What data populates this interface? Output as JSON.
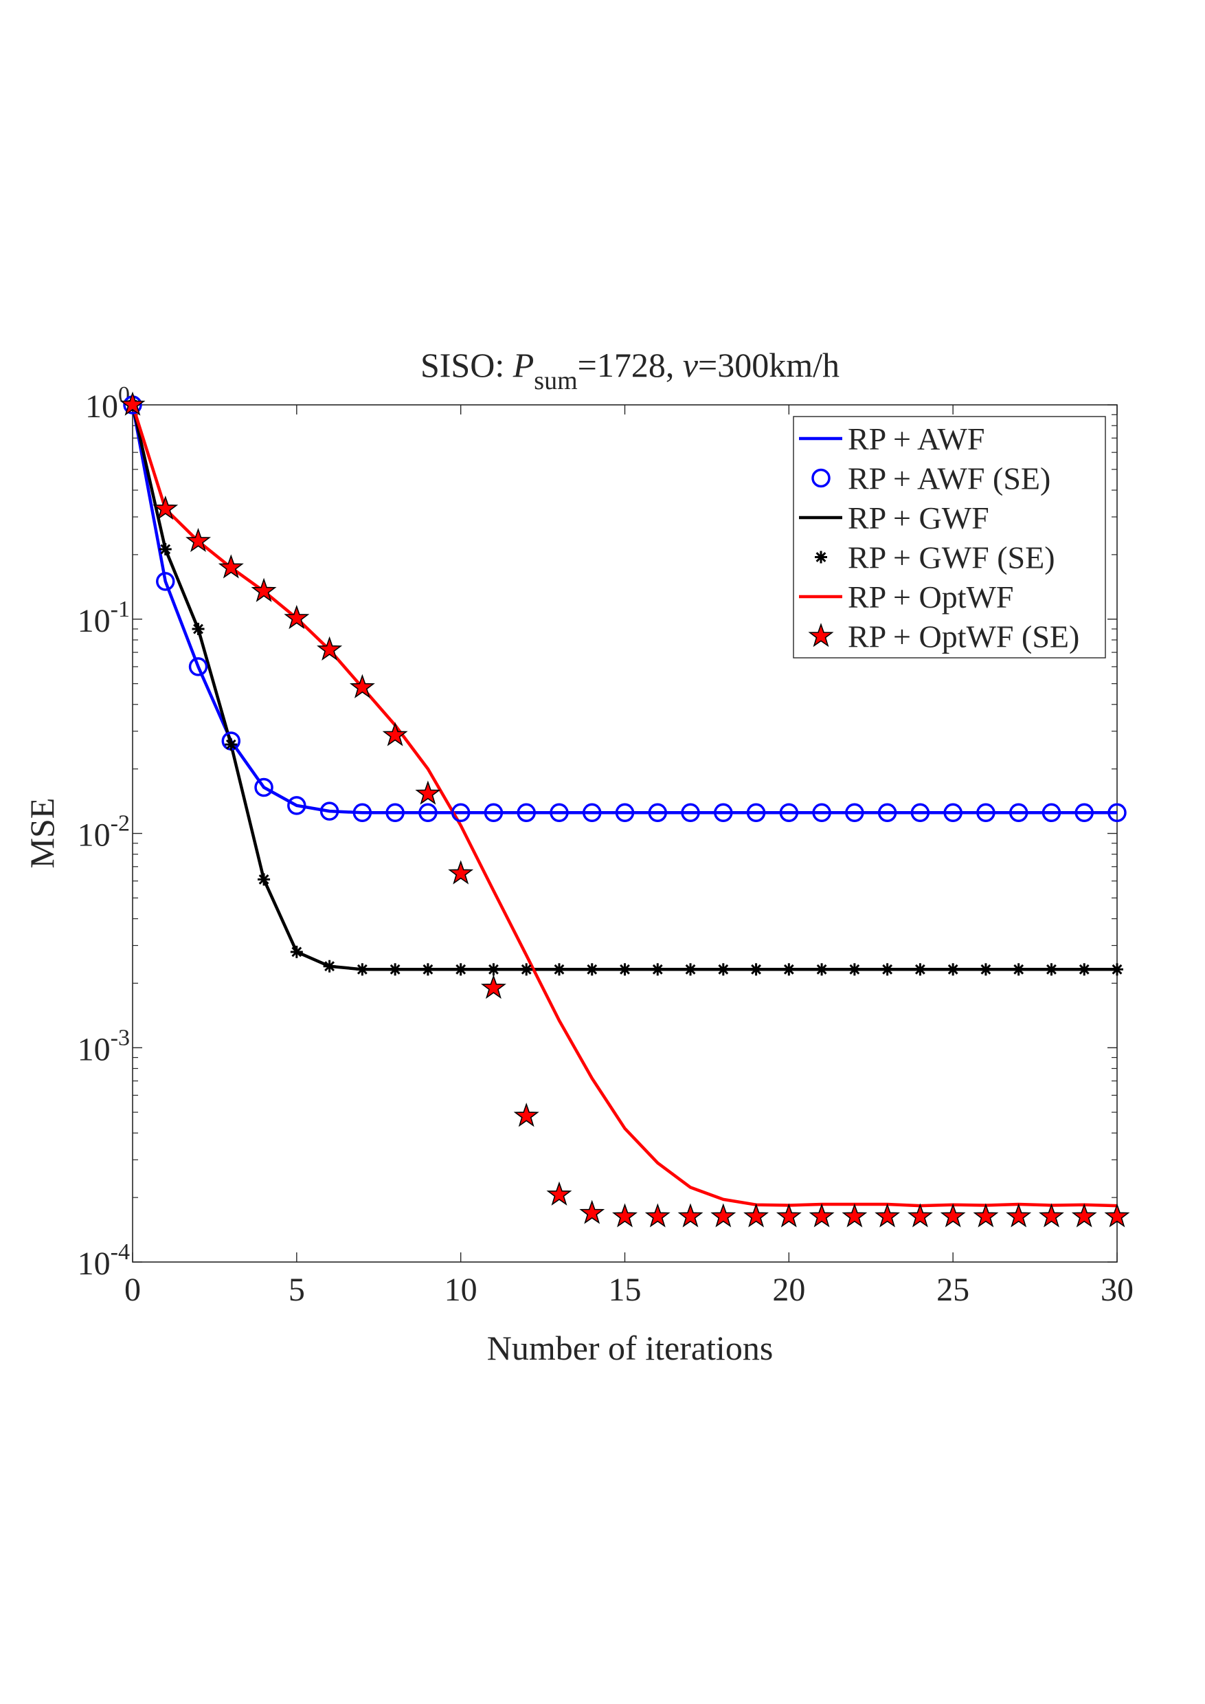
{
  "chart_data": {
    "type": "line",
    "title": {
      "prefix": "SISO: ",
      "P": "P",
      "sub": "sum",
      "mid": "=1728, ",
      "v": "v",
      "suffix": "=300km/h"
    },
    "xlabel": "Number of iterations",
    "ylabel": "MSE",
    "xlim": [
      0,
      30
    ],
    "ylim": [
      0.0001,
      1
    ],
    "yscale": "log",
    "grid": false,
    "legend_placement": "top-right",
    "xticks": [
      0,
      5,
      10,
      15,
      20,
      25,
      30
    ],
    "yticks": [
      {
        "base": "10",
        "exp": "0"
      },
      {
        "base": "10",
        "exp": "-1"
      },
      {
        "base": "10",
        "exp": "-2"
      },
      {
        "base": "10",
        "exp": "-3"
      },
      {
        "base": "10",
        "exp": "-4"
      }
    ],
    "x": [
      0,
      1,
      2,
      3,
      4,
      5,
      6,
      7,
      8,
      9,
      10,
      11,
      12,
      13,
      14,
      15,
      16,
      17,
      18,
      19,
      20,
      21,
      22,
      23,
      24,
      25,
      26,
      27,
      28,
      29,
      30
    ],
    "series": [
      {
        "name": "RP + AWF",
        "color": "#0000ff",
        "style": "line",
        "values": [
          1,
          0.15,
          0.06,
          0.027,
          0.0164,
          0.0135,
          0.0127,
          0.0125,
          0.0125,
          0.0125,
          0.0125,
          0.0125,
          0.0125,
          0.0125,
          0.0125,
          0.0125,
          0.0125,
          0.0125,
          0.0125,
          0.0125,
          0.0125,
          0.0125,
          0.0125,
          0.0125,
          0.0125,
          0.0125,
          0.0125,
          0.0125,
          0.0125,
          0.0125,
          0.0125
        ]
      },
      {
        "name": "RP + AWF (SE)",
        "color": "#0000ff",
        "style": "marker",
        "marker": "circle",
        "values": [
          1,
          0.15,
          0.06,
          0.027,
          0.0164,
          0.0135,
          0.0127,
          0.0125,
          0.0125,
          0.0125,
          0.0125,
          0.0125,
          0.0125,
          0.0125,
          0.0125,
          0.0125,
          0.0125,
          0.0125,
          0.0125,
          0.0125,
          0.0125,
          0.0125,
          0.0125,
          0.0125,
          0.0125,
          0.0125,
          0.0125,
          0.0125,
          0.0125,
          0.0125,
          0.0125
        ]
      },
      {
        "name": "RP + GWF",
        "color": "#000000",
        "style": "line",
        "values": [
          1,
          0.212,
          0.09,
          0.026,
          0.0061,
          0.0028,
          0.0024,
          0.00232,
          0.00232,
          0.00232,
          0.00232,
          0.00232,
          0.00232,
          0.00232,
          0.00232,
          0.00232,
          0.00232,
          0.00232,
          0.00232,
          0.00232,
          0.00232,
          0.00232,
          0.00232,
          0.00232,
          0.00232,
          0.00232,
          0.00232,
          0.00232,
          0.00232,
          0.00232,
          0.00232
        ]
      },
      {
        "name": "RP + GWF (SE)",
        "color": "#000000",
        "style": "marker",
        "marker": "asterisk",
        "values": [
          1,
          0.212,
          0.09,
          0.026,
          0.0061,
          0.0028,
          0.0024,
          0.00232,
          0.00232,
          0.00232,
          0.00232,
          0.00232,
          0.00232,
          0.00232,
          0.00232,
          0.00232,
          0.00232,
          0.00232,
          0.00232,
          0.00232,
          0.00232,
          0.00232,
          0.00232,
          0.00232,
          0.00232,
          0.00232,
          0.00232,
          0.00232,
          0.00232,
          0.00232,
          0.00232
        ]
      },
      {
        "name": "RP + OptWF",
        "color": "#ff0000",
        "style": "line",
        "values": [
          1,
          0.327,
          0.231,
          0.174,
          0.135,
          0.101,
          0.072,
          0.048,
          0.032,
          0.02,
          0.0109,
          0.0054,
          0.0027,
          0.00134,
          0.00072,
          0.00042,
          0.00029,
          0.000223,
          0.000196,
          0.000185,
          0.000184,
          0.000186,
          0.000186,
          0.000186,
          0.000183,
          0.000185,
          0.000184,
          0.000186,
          0.000184,
          0.000185,
          0.000183
        ]
      },
      {
        "name": "RP + OptWF (SE)",
        "color": "#ff0000",
        "style": "marker",
        "marker": "star",
        "values": [
          1,
          0.327,
          0.231,
          0.174,
          0.135,
          0.101,
          0.072,
          0.048,
          0.0287,
          0.0153,
          0.0065,
          0.0019,
          0.00048,
          0.000206,
          0.000169,
          0.000163,
          0.000163,
          0.000163,
          0.000163,
          0.000163,
          0.000163,
          0.000163,
          0.000163,
          0.000163,
          0.000163,
          0.000163,
          0.000163,
          0.000163,
          0.000163,
          0.000163,
          0.000163
        ]
      }
    ]
  }
}
